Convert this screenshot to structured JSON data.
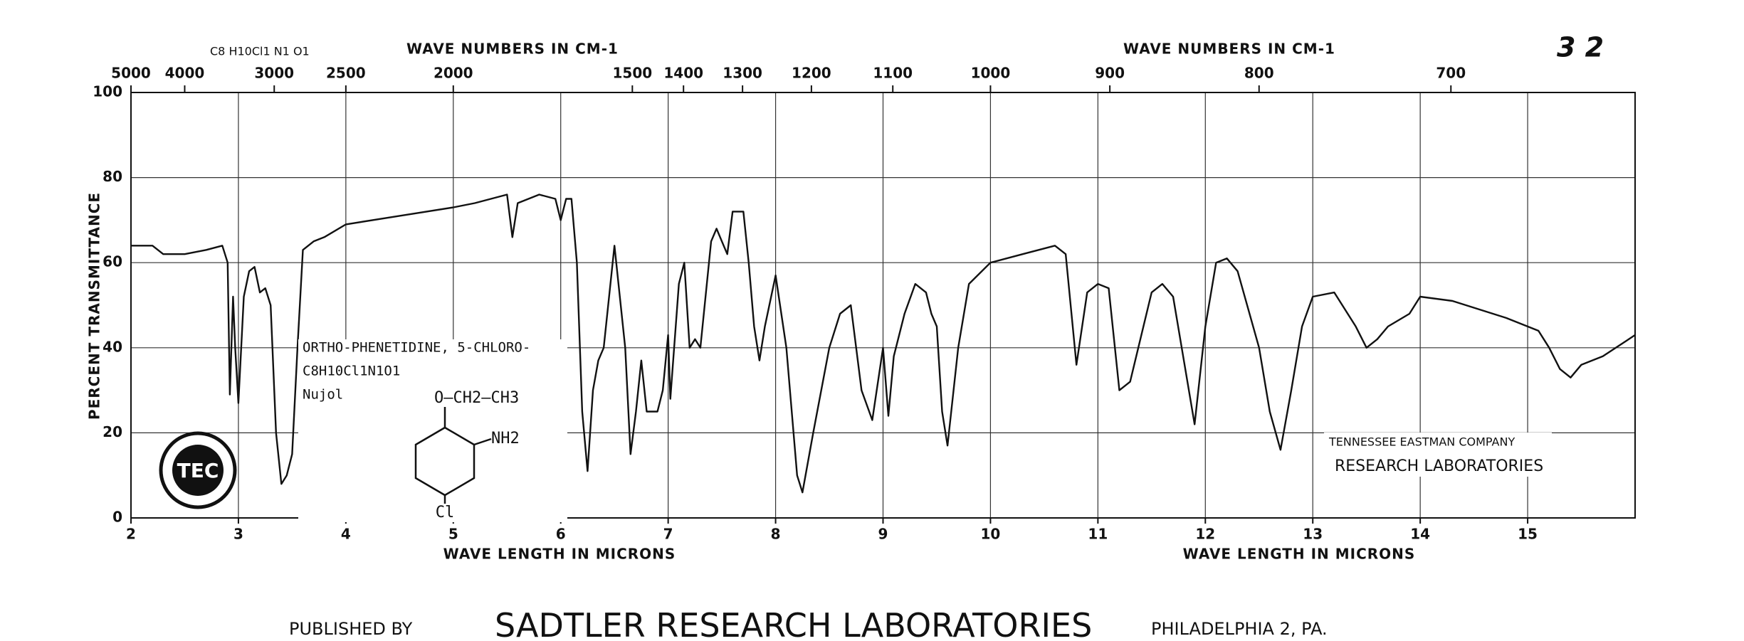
{
  "header": {
    "page_number": "3 2",
    "formula": "C8 H10Cl1 N1 O1"
  },
  "chart_data": {
    "type": "line",
    "x_label": "WAVE LENGTH IN MICRONS",
    "x_label_right": "WAVE LENGTH IN MICRONS",
    "x2_label": "WAVE NUMBERS IN CM-1",
    "x2_label_right": "WAVE NUMBERS IN CM-1",
    "y_label": "PERCENT TRANSMITTANCE",
    "xlim": [
      2,
      16
    ],
    "xticks": [
      2,
      3,
      4,
      5,
      6,
      7,
      8,
      9,
      10,
      11,
      12,
      13,
      14,
      15
    ],
    "x2ticks": [
      5000,
      4000,
      3000,
      2500,
      2000,
      1500,
      1400,
      1300,
      1200,
      1100,
      1000,
      900,
      800,
      700
    ],
    "ylim": [
      0,
      100
    ],
    "yticks": [
      0,
      20,
      40,
      60,
      80,
      100
    ],
    "grid": true,
    "color": "#111111",
    "x": [
      2.0,
      2.2,
      2.3,
      2.5,
      2.7,
      2.85,
      2.9,
      2.92,
      2.95,
      2.97,
      3.0,
      3.05,
      3.1,
      3.15,
      3.2,
      3.25,
      3.3,
      3.35,
      3.4,
      3.45,
      3.5,
      3.55,
      3.6,
      3.7,
      3.8,
      4.0,
      4.5,
      5.0,
      5.2,
      5.5,
      5.55,
      5.6,
      5.8,
      5.95,
      6.0,
      6.05,
      6.1,
      6.15,
      6.2,
      6.25,
      6.3,
      6.35,
      6.4,
      6.5,
      6.6,
      6.65,
      6.7,
      6.75,
      6.8,
      6.9,
      6.95,
      7.0,
      7.02,
      7.1,
      7.15,
      7.2,
      7.25,
      7.3,
      7.4,
      7.45,
      7.5,
      7.55,
      7.6,
      7.7,
      7.75,
      7.8,
      7.85,
      7.9,
      8.0,
      8.1,
      8.2,
      8.25,
      8.35,
      8.5,
      8.6,
      8.7,
      8.8,
      8.9,
      9.0,
      9.05,
      9.1,
      9.2,
      9.3,
      9.4,
      9.45,
      9.5,
      9.55,
      9.6,
      9.7,
      9.8,
      10.0,
      10.3,
      10.6,
      10.7,
      10.8,
      10.9,
      11.0,
      11.1,
      11.2,
      11.3,
      11.5,
      11.6,
      11.7,
      11.9,
      12.0,
      12.1,
      12.2,
      12.3,
      12.5,
      12.6,
      12.7,
      12.8,
      12.9,
      13.0,
      13.2,
      13.4,
      13.5,
      13.6,
      13.7,
      13.9,
      14.0,
      14.3,
      14.8,
      15.1,
      15.2,
      15.3,
      15.4,
      15.5,
      15.7,
      16.0
    ],
    "values": [
      64,
      64,
      62,
      62,
      63,
      64,
      60,
      29,
      52,
      40,
      27,
      52,
      58,
      59,
      53,
      54,
      50,
      20,
      8,
      10,
      15,
      40,
      63,
      65,
      66,
      69,
      71,
      73,
      74,
      76,
      66,
      74,
      76,
      75,
      70,
      75,
      75,
      60,
      25,
      11,
      30,
      37,
      40,
      64,
      40,
      15,
      25,
      37,
      25,
      25,
      30,
      43,
      28,
      55,
      60,
      40,
      42,
      40,
      65,
      68,
      65,
      62,
      72,
      72,
      60,
      45,
      37,
      45,
      57,
      40,
      10,
      6,
      20,
      40,
      48,
      50,
      30,
      23,
      40,
      24,
      38,
      48,
      55,
      53,
      48,
      45,
      25,
      17,
      40,
      55,
      60,
      62,
      64,
      62,
      36,
      53,
      55,
      54,
      30,
      32,
      53,
      55,
      52,
      22,
      45,
      60,
      61,
      58,
      40,
      25,
      16,
      30,
      45,
      52,
      53,
      45,
      40,
      42,
      45,
      48,
      52,
      51,
      47,
      44,
      40,
      35,
      33,
      36,
      38,
      43
    ]
  },
  "sample": {
    "name": "ORTHO-PHENETIDINE, 5-CHLORO-",
    "formula": "C8H10Cl1N1O1",
    "medium": "Nujol",
    "substituent_top": "O—CH2—CH3",
    "substituent_right": "NH2",
    "substituent_bottom": "Cl"
  },
  "stamp": {
    "line1": "TENNESSEE EASTMAN COMPANY",
    "line2": "RESEARCH LABORATORIES",
    "logo": "TEC"
  },
  "footer": {
    "prefix": "PUBLISHED BY",
    "publisher": "SADTLER RESEARCH LABORATORIES",
    "city": "PHILADELPHIA 2, PA."
  }
}
